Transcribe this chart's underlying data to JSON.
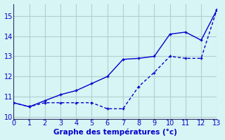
{
  "line1_x": [
    0,
    1,
    2,
    3,
    4,
    5,
    6,
    7,
    8,
    9,
    10,
    11,
    12,
    13
  ],
  "line1_y": [
    10.7,
    10.5,
    10.7,
    10.7,
    10.7,
    10.7,
    10.4,
    10.4,
    11.5,
    12.2,
    13.0,
    12.9,
    12.9,
    15.3
  ],
  "line2_x": [
    0,
    1,
    2,
    3,
    4,
    5,
    6,
    7,
    8,
    9,
    10,
    11,
    12,
    13
  ],
  "line2_y": [
    10.7,
    10.5,
    10.8,
    11.1,
    11.3,
    11.65,
    12.0,
    12.85,
    12.9,
    13.0,
    14.1,
    14.2,
    13.8,
    15.3
  ],
  "line_color": "#0000cc",
  "bg_color": "#d8f5f5",
  "grid_color": "#b0d0d0",
  "xlabel": "Graphe des températures (°c)",
  "xlim": [
    0,
    13
  ],
  "ylim": [
    9.9,
    15.6
  ],
  "yticks": [
    10,
    11,
    12,
    13,
    14,
    15
  ],
  "xticks": [
    0,
    1,
    2,
    3,
    4,
    5,
    6,
    7,
    8,
    9,
    10,
    11,
    12,
    13
  ],
  "xlabel_color": "#0000cc",
  "xlabel_fontsize": 7.5,
  "tick_fontsize": 7,
  "tick_color": "#0000cc"
}
